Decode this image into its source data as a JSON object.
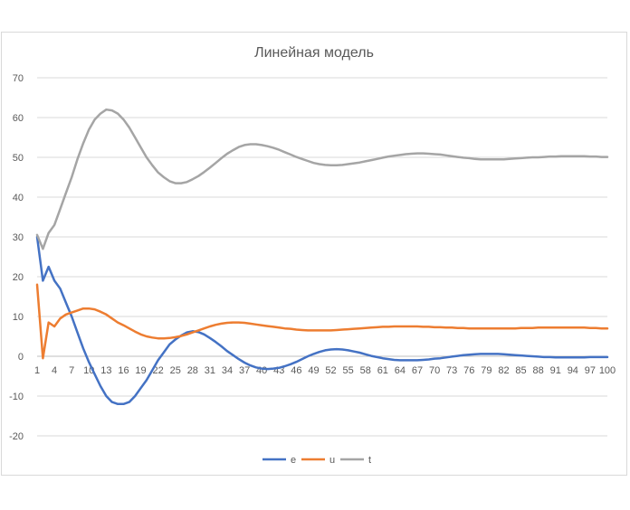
{
  "chart_data": {
    "type": "line",
    "title": "Линейная модель",
    "xlabel": "",
    "ylabel": "",
    "ylim": [
      -20,
      70
    ],
    "yticks": [
      -20,
      -10,
      0,
      10,
      20,
      30,
      40,
      50,
      60,
      70
    ],
    "x_tick_labels": [
      "1",
      "4",
      "7",
      "10",
      "13",
      "16",
      "19",
      "22",
      "25",
      "28",
      "31",
      "34",
      "37",
      "40",
      "43",
      "46",
      "49",
      "52",
      "55",
      "58",
      "61",
      "64",
      "67",
      "70",
      "73",
      "76",
      "79",
      "82",
      "85",
      "88",
      "91",
      "94",
      "97",
      "100"
    ],
    "grid": true,
    "legend_position": "bottom",
    "x": [
      1,
      2,
      3,
      4,
      5,
      6,
      7,
      8,
      9,
      10,
      11,
      12,
      13,
      14,
      15,
      16,
      17,
      18,
      19,
      20,
      21,
      22,
      23,
      24,
      25,
      26,
      27,
      28,
      29,
      30,
      31,
      32,
      33,
      34,
      35,
      36,
      37,
      38,
      39,
      40,
      41,
      42,
      43,
      44,
      45,
      46,
      47,
      48,
      49,
      50,
      51,
      52,
      53,
      54,
      55,
      56,
      57,
      58,
      59,
      60,
      61,
      62,
      63,
      64,
      65,
      66,
      67,
      68,
      69,
      70,
      71,
      72,
      73,
      74,
      75,
      76,
      77,
      78,
      79,
      80,
      81,
      82,
      83,
      84,
      85,
      86,
      87,
      88,
      89,
      90,
      91,
      92,
      93,
      94,
      95,
      96,
      97,
      98,
      99,
      100
    ],
    "series": [
      {
        "name": "e",
        "color": "#4472c4",
        "values": [
          30,
          19,
          22.5,
          19,
          17,
          13.5,
          10,
          6,
          2,
          -1.5,
          -4.5,
          -7.5,
          -10,
          -11.5,
          -12,
          -12,
          -11.5,
          -10,
          -8,
          -6,
          -3.5,
          -1,
          1,
          3,
          4.2,
          5.2,
          6,
          6.3,
          6.1,
          5.5,
          4.6,
          3.6,
          2.5,
          1.3,
          0.3,
          -0.7,
          -1.6,
          -2.3,
          -2.8,
          -3.1,
          -3.2,
          -3.1,
          -2.9,
          -2.5,
          -2,
          -1.4,
          -0.7,
          0,
          0.6,
          1.1,
          1.5,
          1.7,
          1.8,
          1.7,
          1.5,
          1.2,
          0.9,
          0.5,
          0.1,
          -0.2,
          -0.5,
          -0.7,
          -0.9,
          -1,
          -1,
          -1,
          -1,
          -0.9,
          -0.8,
          -0.6,
          -0.5,
          -0.3,
          -0.1,
          0.1,
          0.3,
          0.4,
          0.5,
          0.6,
          0.6,
          0.6,
          0.6,
          0.5,
          0.4,
          0.3,
          0.2,
          0.1,
          0,
          -0.1,
          -0.2,
          -0.2,
          -0.3,
          -0.3,
          -0.3,
          -0.3,
          -0.3,
          -0.3,
          -0.2,
          -0.2,
          -0.2,
          -0.2
        ]
      },
      {
        "name": "u",
        "color": "#ed7d31",
        "values": [
          18,
          -0.5,
          8.5,
          7.5,
          9.5,
          10.5,
          11,
          11.5,
          12,
          12,
          11.8,
          11.2,
          10.5,
          9.5,
          8.5,
          7.8,
          7,
          6.2,
          5.5,
          5,
          4.7,
          4.5,
          4.5,
          4.6,
          4.8,
          5.1,
          5.5,
          6,
          6.5,
          7,
          7.5,
          7.9,
          8.2,
          8.4,
          8.5,
          8.5,
          8.4,
          8.2,
          8,
          7.8,
          7.6,
          7.4,
          7.2,
          7,
          6.9,
          6.7,
          6.6,
          6.5,
          6.5,
          6.5,
          6.5,
          6.5,
          6.6,
          6.7,
          6.8,
          6.9,
          7,
          7.1,
          7.2,
          7.3,
          7.4,
          7.4,
          7.5,
          7.5,
          7.5,
          7.5,
          7.5,
          7.4,
          7.4,
          7.3,
          7.3,
          7.2,
          7.2,
          7.1,
          7.1,
          7,
          7,
          7,
          7,
          7,
          7,
          7,
          7,
          7,
          7.1,
          7.1,
          7.1,
          7.2,
          7.2,
          7.2,
          7.2,
          7.2,
          7.2,
          7.2,
          7.2,
          7.2,
          7.1,
          7.1,
          7,
          7
        ]
      },
      {
        "name": "t",
        "color": "#a5a5a5",
        "values": [
          30.5,
          27,
          31,
          33,
          37,
          41,
          45,
          49.5,
          53.5,
          57,
          59.5,
          61,
          62,
          61.8,
          61,
          59.5,
          57.5,
          55,
          52.5,
          50,
          48,
          46.2,
          45,
          44,
          43.5,
          43.5,
          43.8,
          44.5,
          45.3,
          46.3,
          47.4,
          48.6,
          49.8,
          50.9,
          51.8,
          52.6,
          53.1,
          53.3,
          53.3,
          53.1,
          52.8,
          52.4,
          51.9,
          51.3,
          50.7,
          50.1,
          49.6,
          49.1,
          48.6,
          48.3,
          48.1,
          48,
          48,
          48.1,
          48.3,
          48.5,
          48.7,
          49,
          49.3,
          49.6,
          49.9,
          50.2,
          50.4,
          50.6,
          50.8,
          50.9,
          51,
          51,
          50.9,
          50.8,
          50.7,
          50.5,
          50.3,
          50.1,
          49.9,
          49.8,
          49.6,
          49.5,
          49.5,
          49.5,
          49.5,
          49.5,
          49.6,
          49.7,
          49.8,
          49.9,
          50,
          50,
          50.1,
          50.2,
          50.2,
          50.3,
          50.3,
          50.3,
          50.3,
          50.3,
          50.2,
          50.2,
          50.1,
          50.1
        ]
      }
    ]
  }
}
